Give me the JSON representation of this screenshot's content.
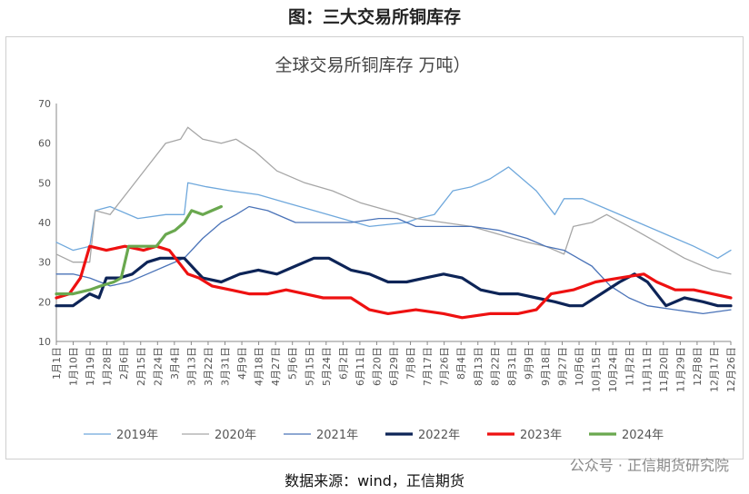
{
  "page": {
    "header_title": "图：三大交易所铜库存",
    "source": "数据来源：wind，正信期货",
    "watermark": "公众号 · 正信期货研究院"
  },
  "chart_data": {
    "type": "line",
    "title": "全球交易所铜库存 万吨）",
    "ylim": [
      10,
      70
    ],
    "yticks": [
      10,
      20,
      30,
      40,
      50,
      60,
      70
    ],
    "xticks": [
      "1月1日",
      "1月10日",
      "1月19日",
      "1月28日",
      "2月6日",
      "2月15日",
      "2月24日",
      "3月4日",
      "3月13日",
      "3月22日",
      "3月31日",
      "4月9日",
      "4月18日",
      "4月27日",
      "5月6日",
      "5月15日",
      "5月24日",
      "6月2日",
      "6月11日",
      "6月20日",
      "6月29日",
      "7月8日",
      "7月17日",
      "7月26日",
      "8月4日",
      "8月13日",
      "8月22日",
      "8月31日",
      "9月9日",
      "9月18日",
      "9月27日",
      "10月6日",
      "10月15日",
      "10月24日",
      "11月2日",
      "11月11日",
      "11月20日",
      "11月29日",
      "12月8日",
      "12月17日",
      "12月26日"
    ],
    "grid": false,
    "legend_position": "bottom",
    "x_unit": "day_of_year",
    "series": [
      {
        "name": "2019年",
        "color": "#6fa8dc",
        "width": 1.3,
        "points": [
          [
            1,
            35
          ],
          [
            10,
            33
          ],
          [
            19,
            34
          ],
          [
            22,
            43
          ],
          [
            30,
            44
          ],
          [
            45,
            41
          ],
          [
            60,
            42
          ],
          [
            70,
            42
          ],
          [
            72,
            50
          ],
          [
            82,
            49
          ],
          [
            95,
            48
          ],
          [
            110,
            47
          ],
          [
            125,
            45
          ],
          [
            140,
            43
          ],
          [
            155,
            41
          ],
          [
            170,
            39
          ],
          [
            190,
            40
          ],
          [
            196,
            41
          ],
          [
            205,
            42
          ],
          [
            215,
            48
          ],
          [
            225,
            49
          ],
          [
            235,
            51
          ],
          [
            245,
            54
          ],
          [
            260,
            48
          ],
          [
            270,
            42
          ],
          [
            275,
            46
          ],
          [
            285,
            46
          ],
          [
            300,
            43
          ],
          [
            315,
            40
          ],
          [
            330,
            37
          ],
          [
            345,
            34
          ],
          [
            358,
            31
          ],
          [
            365,
            33
          ]
        ]
      },
      {
        "name": "2020年",
        "color": "#a6a6a6",
        "width": 1.3,
        "points": [
          [
            1,
            32
          ],
          [
            10,
            30
          ],
          [
            19,
            30
          ],
          [
            22,
            43
          ],
          [
            30,
            42
          ],
          [
            40,
            48
          ],
          [
            50,
            54
          ],
          [
            60,
            60
          ],
          [
            68,
            61
          ],
          [
            72,
            64
          ],
          [
            80,
            61
          ],
          [
            90,
            60
          ],
          [
            98,
            61
          ],
          [
            108,
            58
          ],
          [
            120,
            53
          ],
          [
            135,
            50
          ],
          [
            150,
            48
          ],
          [
            165,
            45
          ],
          [
            180,
            43
          ],
          [
            195,
            41
          ],
          [
            210,
            40
          ],
          [
            225,
            39
          ],
          [
            240,
            37
          ],
          [
            255,
            35
          ],
          [
            265,
            34
          ],
          [
            275,
            32
          ],
          [
            280,
            39
          ],
          [
            290,
            40
          ],
          [
            298,
            42
          ],
          [
            310,
            39
          ],
          [
            325,
            35
          ],
          [
            340,
            31
          ],
          [
            355,
            28
          ],
          [
            365,
            27
          ]
        ]
      },
      {
        "name": "2021年",
        "color": "#4a73b8",
        "width": 1.3,
        "points": [
          [
            1,
            27
          ],
          [
            10,
            27
          ],
          [
            19,
            26
          ],
          [
            30,
            24
          ],
          [
            40,
            25
          ],
          [
            50,
            27
          ],
          [
            60,
            29
          ],
          [
            70,
            31
          ],
          [
            80,
            36
          ],
          [
            90,
            40
          ],
          [
            98,
            42
          ],
          [
            105,
            44
          ],
          [
            115,
            43
          ],
          [
            130,
            40
          ],
          [
            145,
            40
          ],
          [
            160,
            40
          ],
          [
            175,
            41
          ],
          [
            185,
            41
          ],
          [
            195,
            39
          ],
          [
            210,
            39
          ],
          [
            225,
            39
          ],
          [
            240,
            38
          ],
          [
            255,
            36
          ],
          [
            265,
            34
          ],
          [
            275,
            33
          ],
          [
            290,
            29
          ],
          [
            300,
            24
          ],
          [
            310,
            21
          ],
          [
            320,
            19
          ],
          [
            335,
            18
          ],
          [
            350,
            17
          ],
          [
            365,
            18
          ]
        ]
      },
      {
        "name": "2022年",
        "color": "#0d2457",
        "width": 3.2,
        "points": [
          [
            1,
            19
          ],
          [
            10,
            19
          ],
          [
            19,
            22
          ],
          [
            24,
            21
          ],
          [
            28,
            26
          ],
          [
            35,
            26
          ],
          [
            42,
            27
          ],
          [
            50,
            30
          ],
          [
            57,
            31
          ],
          [
            62,
            31
          ],
          [
            70,
            31
          ],
          [
            80,
            26
          ],
          [
            90,
            25
          ],
          [
            100,
            27
          ],
          [
            110,
            28
          ],
          [
            120,
            27
          ],
          [
            130,
            29
          ],
          [
            140,
            31
          ],
          [
            148,
            31
          ],
          [
            160,
            28
          ],
          [
            170,
            27
          ],
          [
            180,
            25
          ],
          [
            190,
            25
          ],
          [
            200,
            26
          ],
          [
            210,
            27
          ],
          [
            220,
            26
          ],
          [
            230,
            23
          ],
          [
            240,
            22
          ],
          [
            250,
            22
          ],
          [
            260,
            21
          ],
          [
            270,
            20
          ],
          [
            278,
            19
          ],
          [
            285,
            19
          ],
          [
            295,
            22
          ],
          [
            305,
            25
          ],
          [
            313,
            27
          ],
          [
            320,
            25
          ],
          [
            330,
            19
          ],
          [
            340,
            21
          ],
          [
            350,
            20
          ],
          [
            358,
            19
          ],
          [
            365,
            19
          ]
        ]
      },
      {
        "name": "2023年",
        "color": "#ee1111",
        "width": 3.2,
        "points": [
          [
            1,
            21
          ],
          [
            8,
            22
          ],
          [
            14,
            26
          ],
          [
            19,
            34
          ],
          [
            28,
            33
          ],
          [
            38,
            34
          ],
          [
            48,
            33
          ],
          [
            55,
            34
          ],
          [
            62,
            33
          ],
          [
            72,
            27
          ],
          [
            78,
            26
          ],
          [
            85,
            24
          ],
          [
            95,
            23
          ],
          [
            105,
            22
          ],
          [
            115,
            22
          ],
          [
            125,
            23
          ],
          [
            135,
            22
          ],
          [
            145,
            21
          ],
          [
            160,
            21
          ],
          [
            170,
            18
          ],
          [
            180,
            17
          ],
          [
            195,
            18
          ],
          [
            210,
            17
          ],
          [
            220,
            16
          ],
          [
            235,
            17
          ],
          [
            250,
            17
          ],
          [
            260,
            18
          ],
          [
            268,
            22
          ],
          [
            280,
            23
          ],
          [
            292,
            25
          ],
          [
            305,
            26
          ],
          [
            318,
            27
          ],
          [
            325,
            25
          ],
          [
            335,
            23
          ],
          [
            345,
            23
          ],
          [
            355,
            22
          ],
          [
            365,
            21
          ]
        ]
      },
      {
        "name": "2024年",
        "color": "#6aa84f",
        "width": 3.2,
        "points": [
          [
            1,
            22
          ],
          [
            10,
            22
          ],
          [
            19,
            23
          ],
          [
            25,
            24
          ],
          [
            32,
            25
          ],
          [
            36,
            26
          ],
          [
            40,
            34
          ],
          [
            48,
            34
          ],
          [
            55,
            34
          ],
          [
            60,
            37
          ],
          [
            65,
            38
          ],
          [
            70,
            40
          ],
          [
            74,
            43
          ],
          [
            80,
            42
          ],
          [
            85,
            43
          ],
          [
            90,
            44
          ]
        ]
      }
    ]
  }
}
